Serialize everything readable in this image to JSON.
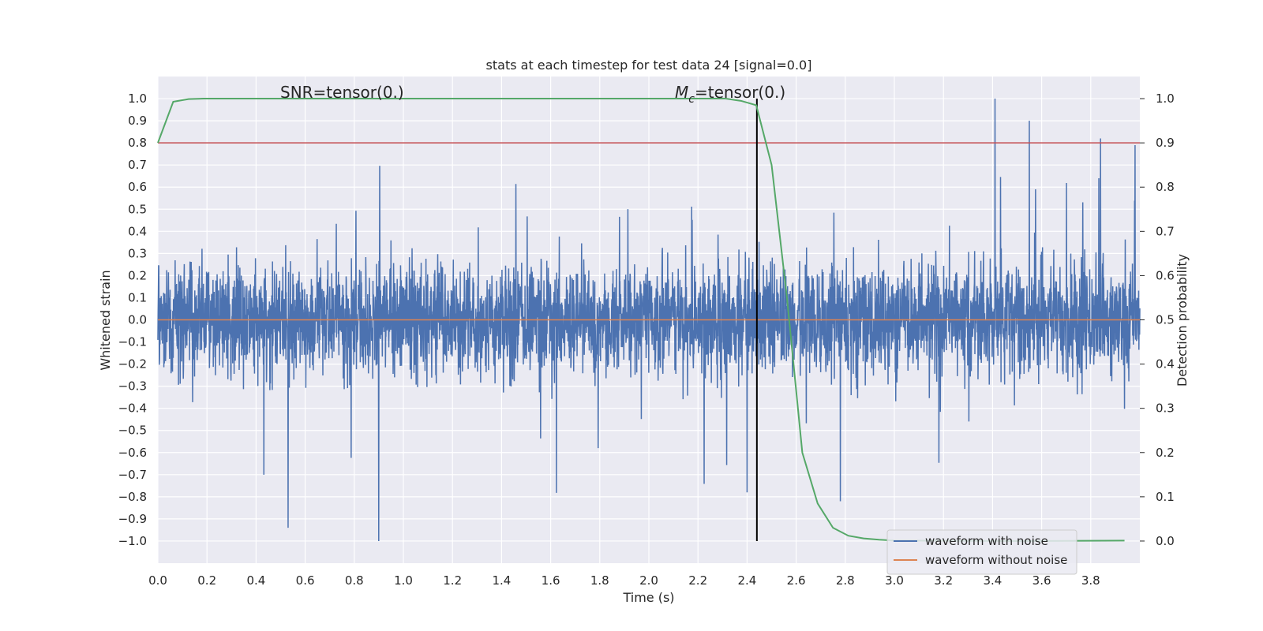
{
  "chart_data": {
    "type": "line",
    "title": "stats at each timestep for test data 24 [signal=0.0]",
    "xlabel": "Time (s)",
    "ylabel": "Whitened strain",
    "y2label": "Detection probability",
    "xlim": [
      0.0,
      4.0
    ],
    "ylim": [
      -1.1,
      1.1
    ],
    "y2lim": [
      -0.05,
      1.05
    ],
    "x_ticks": [
      "0.0",
      "0.2",
      "0.4",
      "0.6",
      "0.8",
      "1.0",
      "1.2",
      "1.4",
      "1.6",
      "1.8",
      "2.0",
      "2.2",
      "2.4",
      "2.6",
      "2.8",
      "3.0",
      "3.2",
      "3.4",
      "3.6",
      "3.8"
    ],
    "y_ticks": [
      "1.0",
      "0.9",
      "0.8",
      "0.7",
      "0.6",
      "0.5",
      "0.4",
      "0.3",
      "0.2",
      "0.1",
      "0.0",
      "−0.1",
      "−0.2",
      "−0.3",
      "−0.4",
      "−0.5",
      "−0.6",
      "−0.7",
      "−0.8",
      "−0.9",
      "−1.0"
    ],
    "y2_ticks": [
      "1.0",
      "0.9",
      "0.8",
      "0.7",
      "0.6",
      "0.5",
      "0.4",
      "0.3",
      "0.2",
      "0.1",
      "0.0"
    ],
    "grid": true,
    "annotations": {
      "snr": "SNR=tensor(0.)",
      "mc_symbol": "M",
      "mc_subscript": "c",
      "mc_value": "=tensor(0.)"
    },
    "legend": {
      "placement": "lower-right",
      "entries": [
        {
          "label": "waveform with noise",
          "color": "#4c72b0"
        },
        {
          "label": "waveform without noise",
          "color": "#dd8452"
        }
      ]
    },
    "series": [
      {
        "name": "waveform with noise",
        "color": "#4c72b0",
        "axis": "left",
        "description_amplitude": 1.0,
        "peaks": [
          {
            "x": 0.53,
            "y": -0.94
          },
          {
            "x": 0.9,
            "y": -1.0
          },
          {
            "x": 3.41,
            "y": 1.0
          },
          {
            "x": 3.55,
            "y": 0.9
          },
          {
            "x": 3.84,
            "y": 0.82
          },
          {
            "x": 3.98,
            "y": 0.79
          },
          {
            "x": 2.4,
            "y": -0.78
          },
          {
            "x": 2.78,
            "y": -0.82
          }
        ]
      },
      {
        "name": "waveform without noise",
        "color": "#dd8452",
        "axis": "left",
        "x": [
          0.0,
          4.0
        ],
        "y": [
          0.0,
          0.0
        ]
      },
      {
        "name": "detection probability",
        "color": "#55a868",
        "axis": "right",
        "x": [
          0.0,
          0.0625,
          0.125,
          0.1875,
          0.25,
          2.25,
          2.3125,
          2.375,
          2.4375,
          2.5,
          2.5625,
          2.625,
          2.6875,
          2.75,
          2.8125,
          2.875,
          2.9375,
          3.0,
          3.5,
          3.9375
        ],
        "y": [
          0.9,
          0.993,
          0.999,
          1.0,
          1.0,
          1.0,
          1.0,
          0.995,
          0.985,
          0.85,
          0.55,
          0.2,
          0.085,
          0.03,
          0.012,
          0.006,
          0.003,
          0.001,
          0.0,
          0.001
        ]
      },
      {
        "name": "threshold",
        "color": "#c44e52",
        "axis": "left",
        "x": [
          0.0,
          4.0
        ],
        "y": [
          0.8,
          0.8
        ]
      },
      {
        "name": "merger time",
        "color": "#000000",
        "axis": "right",
        "x": [
          2.44,
          2.44
        ],
        "y": [
          0.0,
          1.0
        ]
      }
    ]
  }
}
